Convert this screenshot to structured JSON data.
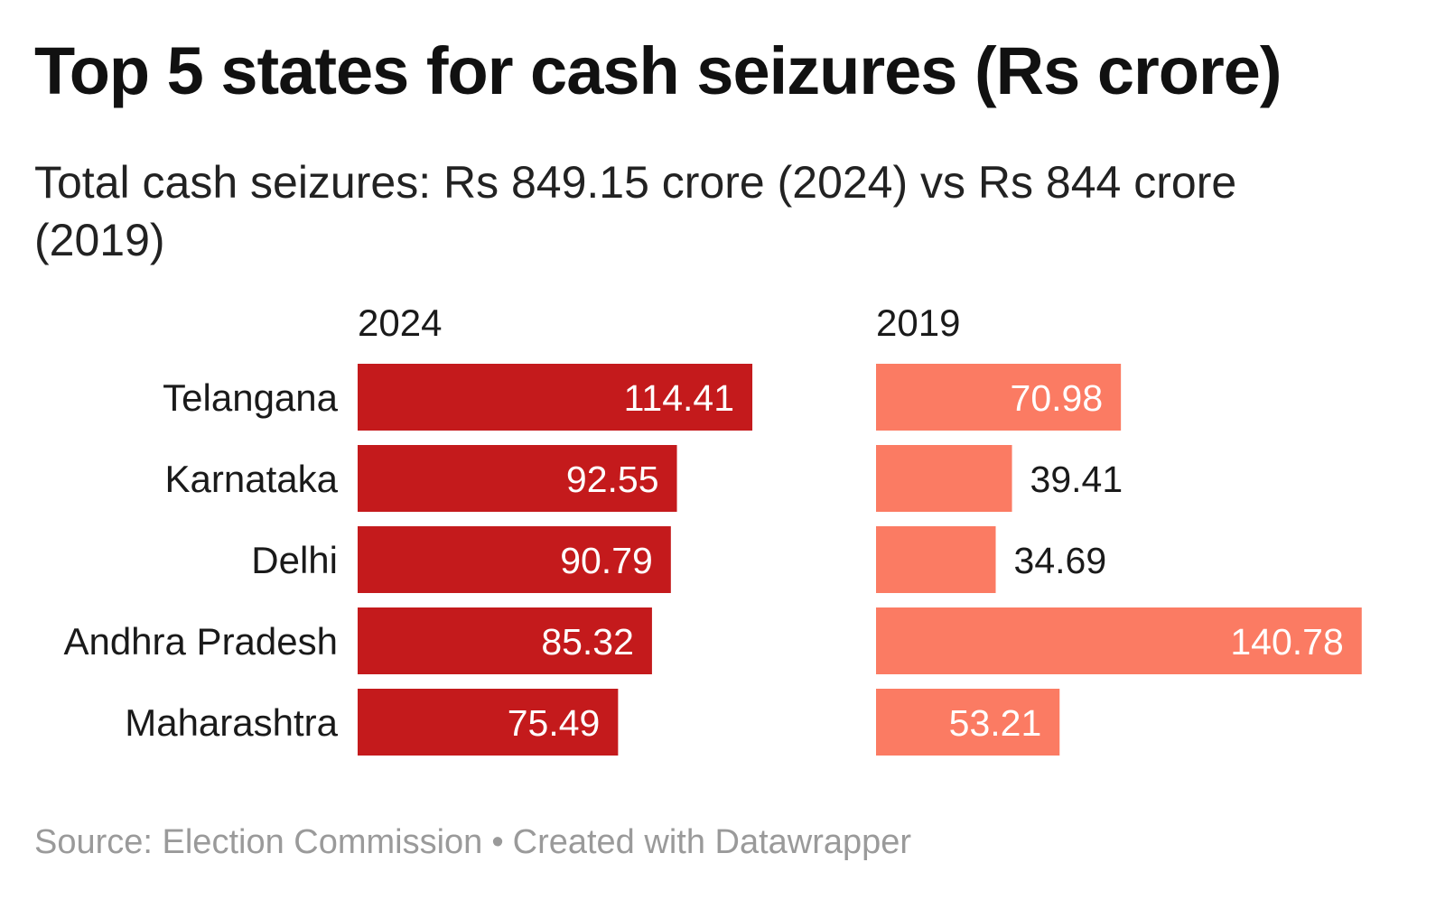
{
  "title": "Top 5 states for cash seizures (Rs crore)",
  "subtitle": "Total cash seizures: Rs 849.15 crore (2024) vs Rs 844 crore (2019)",
  "footer": {
    "source": "Source: Election Commission",
    "separator": "•",
    "credit": "Created with Datawrapper"
  },
  "colors": {
    "series_2024": "#c41a1c",
    "series_2019": "#fb7b63",
    "label_inside": "#ffffff",
    "label_outside": "#1a1a1a"
  },
  "chart_data": {
    "type": "bar",
    "orientation": "horizontal",
    "categories": [
      "Telangana",
      "Karnataka",
      "Delhi",
      "Andhra Pradesh",
      "Maharashtra"
    ],
    "series": [
      {
        "name": "2024",
        "values": [
          114.41,
          92.55,
          90.79,
          85.32,
          75.49
        ]
      },
      {
        "name": "2019",
        "values": [
          70.98,
          39.41,
          34.69,
          140.78,
          53.21
        ]
      }
    ],
    "xlim": [
      0,
      140.78
    ],
    "grid": false,
    "legend": "none"
  }
}
